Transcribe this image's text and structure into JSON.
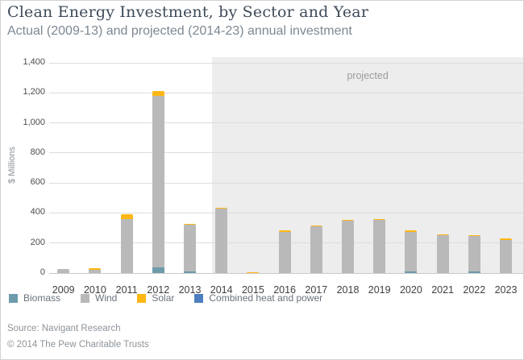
{
  "header": {
    "title": "Clean Energy Investment, by Sector and Year",
    "subtitle": "Actual (2009-13) and projected (2014-23) annual investment"
  },
  "chart_data": {
    "type": "bar",
    "variant": "stacked-vertical",
    "title": "Clean Energy Investment, by Sector and Year",
    "xlabel": "",
    "ylabel": "$ Millions",
    "ylim": [
      0,
      1400
    ],
    "ytick_values": [
      0,
      200,
      400,
      600,
      800,
      1000,
      1200,
      1400
    ],
    "ytick_labels": [
      "0",
      "200",
      "400",
      "600",
      "800",
      "1,000",
      "1,200",
      "1,400"
    ],
    "grid": true,
    "categories": [
      "2009",
      "2010",
      "2011",
      "2012",
      "2013",
      "2014",
      "2015",
      "2016",
      "2017",
      "2018",
      "2019",
      "2020",
      "2021",
      "2022",
      "2023"
    ],
    "series": [
      {
        "name": "Biomass",
        "color": "#6d9bab",
        "values": [
          0,
          0,
          0,
          35,
          12,
          0,
          0,
          0,
          0,
          0,
          0,
          10,
          0,
          12,
          0
        ]
      },
      {
        "name": "Wind",
        "color": "#b9b9b9",
        "values": [
          25,
          22,
          360,
          1145,
          308,
          428,
          0,
          275,
          310,
          348,
          352,
          265,
          252,
          233,
          222
        ]
      },
      {
        "name": "Solar",
        "color": "#fdb714",
        "values": [
          0,
          8,
          30,
          30,
          10,
          7,
          5,
          8,
          7,
          5,
          6,
          8,
          7,
          8,
          8
        ]
      },
      {
        "name": "Combined heat and power",
        "color": "#4d7ebf",
        "values": [
          0,
          0,
          0,
          0,
          0,
          0,
          0,
          0,
          0,
          0,
          0,
          0,
          0,
          0,
          0
        ]
      }
    ],
    "totals": [
      25,
      30,
      390,
      1210,
      330,
      435,
      5,
      283,
      317,
      353,
      358,
      283,
      259,
      253,
      230
    ],
    "projected": {
      "label": "projected",
      "start_category": "2014",
      "end_category": "2023",
      "band_color": "#ededed"
    },
    "legend_position": "bottom-left"
  },
  "footer": {
    "source": "Source: Navigant Research",
    "copyright": "© 2014 The Pew Charitable Trusts"
  },
  "colors": {
    "title_text": "#3e4b59",
    "subtitle_text": "#7d8893",
    "gridline": "#dcdcdc",
    "axis_text": "#4c4c4c",
    "footer_text": "#8e949a"
  }
}
